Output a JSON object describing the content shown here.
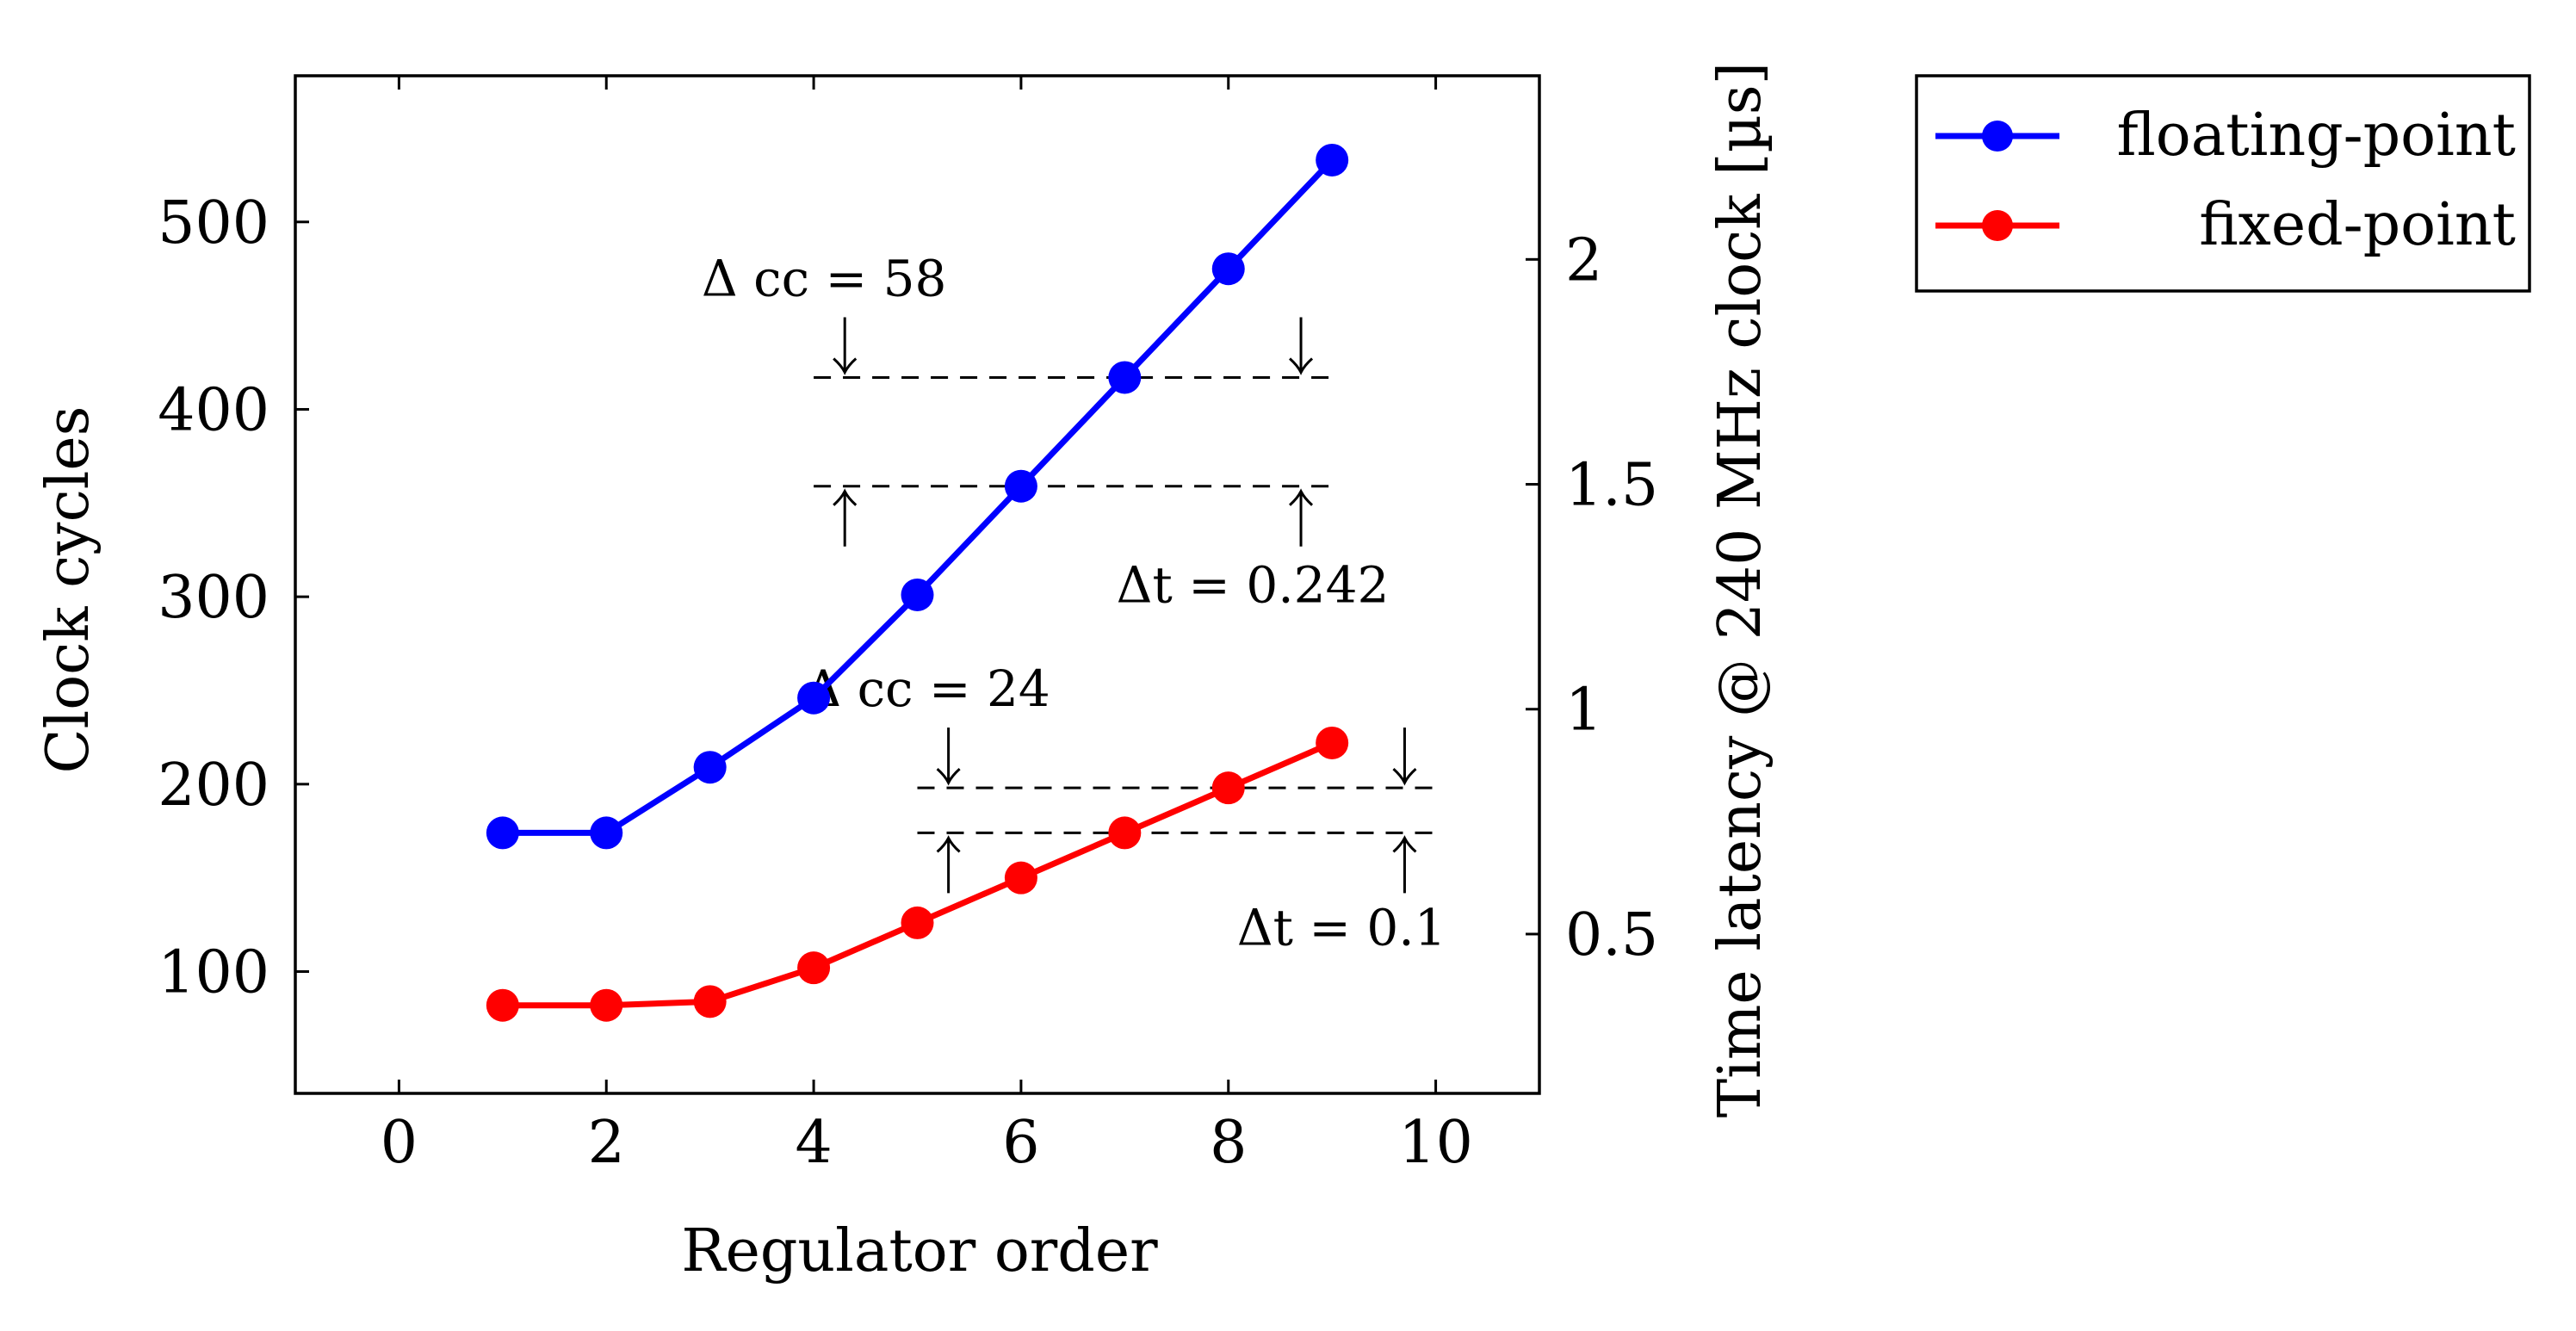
{
  "chart_data": {
    "type": "line",
    "xlabel": "Regulator order",
    "ylabel": "Clock cycles",
    "y2label": "Time latency @ 240 MHz clock [µs]",
    "xlim": [
      -1,
      11
    ],
    "ylim": [
      35,
      578
    ],
    "y2lim": [
      0.1458,
      2.4083
    ],
    "xticks": [
      0,
      2,
      4,
      6,
      8,
      10
    ],
    "yticks": [
      100,
      200,
      300,
      400,
      500
    ],
    "y2ticks": [
      0.5,
      1,
      1.5,
      2
    ],
    "y2tick_labels": [
      "0.5",
      "1",
      "1.5",
      "2"
    ],
    "grid": false,
    "legend_position": "outside-right-top",
    "series": [
      {
        "name": "floating-point",
        "color": "#0000ff",
        "x": [
          1,
          2,
          3,
          4,
          5,
          6,
          7,
          8,
          9
        ],
        "y": [
          174,
          174,
          209,
          246,
          301,
          359,
          417,
          475,
          533
        ]
      },
      {
        "name": "fixed-point",
        "color": "#ff0000",
        "x": [
          1,
          2,
          3,
          4,
          5,
          6,
          7,
          8,
          9
        ],
        "y": [
          82,
          82,
          84,
          102,
          126,
          150,
          174,
          198,
          222
        ]
      }
    ],
    "annotations": [
      {
        "label": "Δ cc = 58",
        "y_upper": 417,
        "y_lower": 359,
        "x_from": 4,
        "x_to": 9
      },
      {
        "label": "Δt = 0.242",
        "y_upper": 417,
        "y_lower": 359
      },
      {
        "label": "Δ cc = 24",
        "y_upper": 198,
        "y_lower": 174,
        "x_from": 5,
        "x_to": 10
      },
      {
        "label": "Δt = 0.1",
        "y_upper": 198,
        "y_lower": 174
      }
    ]
  }
}
